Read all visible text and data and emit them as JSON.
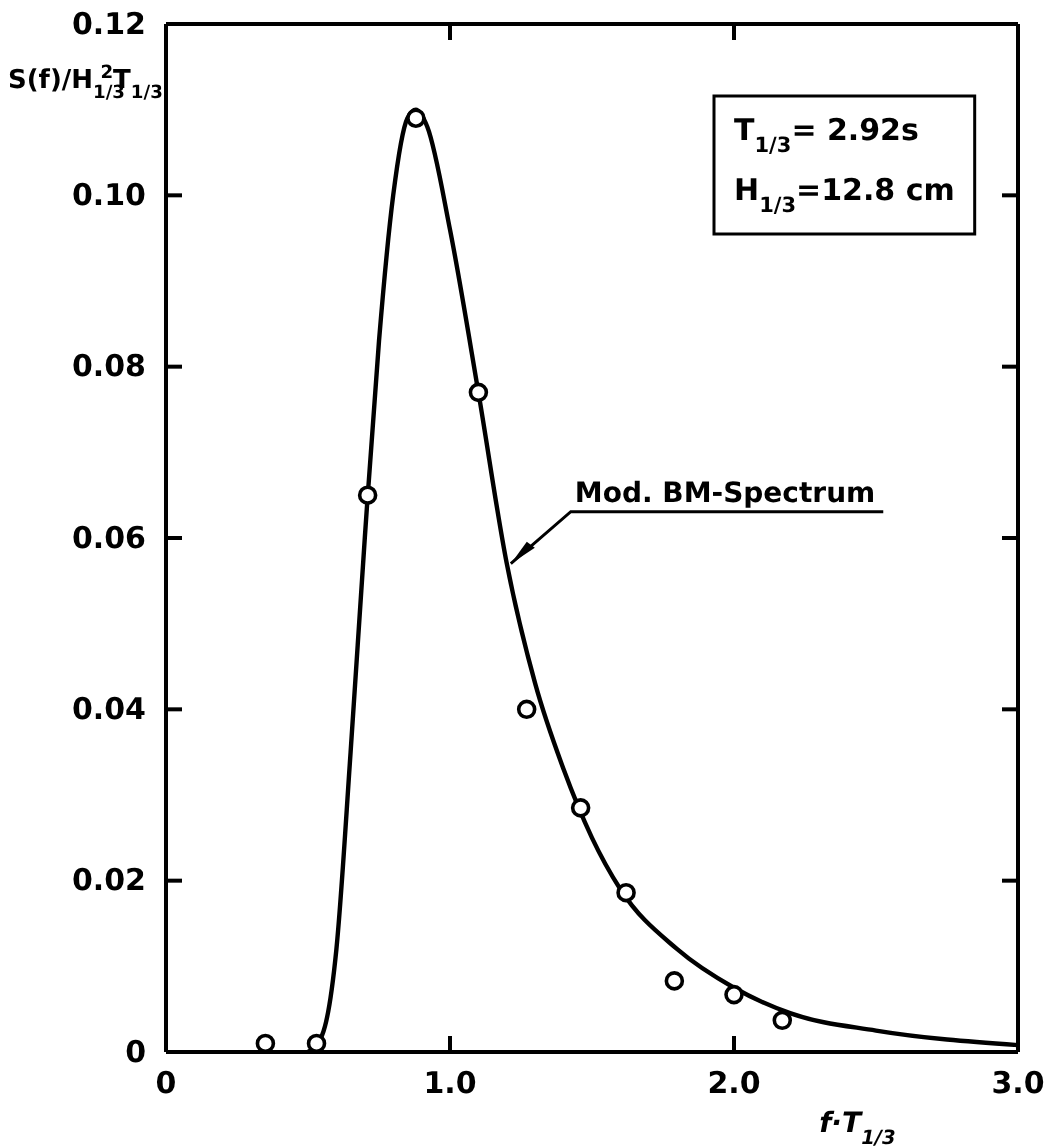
{
  "chart_data": {
    "type": "scatter",
    "xlabel": "f·T$_{1/3}$",
    "ylabel": "S(f)/H$_{1/3}$$^{2}$T$_{1/3}$",
    "annotations": [
      "T$_{1/3}$= 2.92s",
      "H$_{1/3}$=12.8  cm"
    ],
    "xlim": [
      0,
      3
    ],
    "xticks": [
      0,
      {
        "value": 1,
        "label": "1.0"
      },
      {
        "value": 2,
        "label": "2.0"
      },
      {
        "value": 3,
        "label": "3.0"
      }
    ],
    "ylim": [
      0,
      0.12
    ],
    "yticks": [
      0,
      {
        "value": 0.02,
        "label": "0.02"
      },
      {
        "value": 0.04,
        "label": "0.04"
      },
      {
        "value": 0.06,
        "label": "0.06"
      },
      {
        "value": 0.08,
        "label": "0.08"
      },
      {
        "value": 0.1,
        "label": "0.10"
      },
      {
        "value": 0.12,
        "label": "0.12"
      }
    ],
    "grid": false,
    "legend": false,
    "series": [
      {
        "marker": "circle",
        "color": "#000000",
        "x": [
          0.35,
          0.53,
          0.71,
          0.88,
          1.1,
          1.27,
          1.46,
          1.62,
          1.79,
          2.0,
          2.17
        ],
        "values": [
          0.001,
          0.001,
          0.065,
          0.109,
          0.077,
          0.04,
          0.0285,
          0.0186,
          0.0083,
          0.0067,
          0.0037
        ]
      },
      {
        "type": "line",
        "marker": "none",
        "name": "Mod. BM-Spectrum",
        "color": "#000000",
        "line_style": "solid",
        "x": [
          0.5,
          0.55,
          0.6,
          0.65,
          0.7,
          0.75,
          0.8,
          0.85,
          0.88,
          0.92,
          1.0,
          1.1,
          1.2,
          1.3,
          1.4,
          1.5,
          1.6,
          1.8,
          2.0,
          2.2,
          2.5,
          3.0
        ],
        "values": [
          0,
          0.002,
          0.012,
          0.035,
          0.06,
          0.083,
          0.1,
          0.109,
          0.11,
          0.108,
          0.096,
          0.077,
          0.057,
          0.043,
          0.033,
          0.025,
          0.019,
          0.012,
          0.0075,
          0.0045,
          0.0025,
          0.0008
        ]
      }
    ]
  }
}
